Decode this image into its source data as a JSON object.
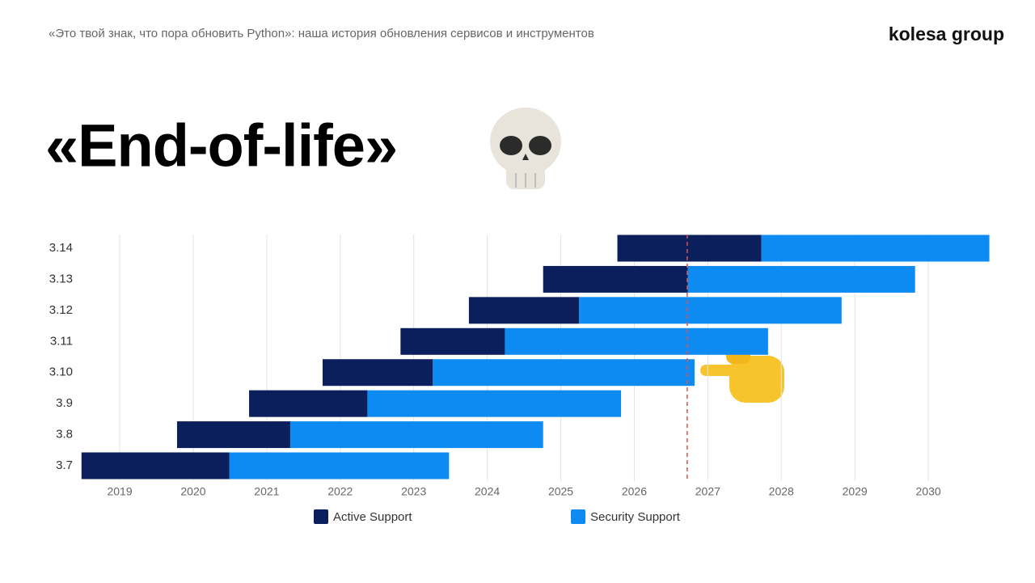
{
  "header": {
    "subtitle": "«Это твой знак, что пора обновить Python»: наша история обновления сервисов и инструментов",
    "brand": "kolesa group",
    "title": "«End-of-life»"
  },
  "chart_data": {
    "type": "floating-bar",
    "categories": [
      "3.7",
      "3.8",
      "3.9",
      "3.10",
      "3.11",
      "3.12",
      "3.13",
      "3.14"
    ],
    "series": [
      {
        "name": "Active Support",
        "color": "#0b1f5c",
        "start": [
          2018.48,
          2019.78,
          2020.76,
          2021.76,
          2022.82,
          2023.75,
          2024.76,
          2025.77
        ],
        "end": [
          2020.49,
          2021.32,
          2022.37,
          2023.26,
          2024.24,
          2025.25,
          2026.73,
          2027.73
        ]
      },
      {
        "name": "Security Support",
        "color": "#0d8bf2",
        "start": [
          2020.49,
          2021.32,
          2022.37,
          2023.26,
          2024.24,
          2025.25,
          2026.73,
          2027.73
        ],
        "end": [
          2023.48,
          2024.76,
          2025.82,
          2026.82,
          2027.82,
          2028.82,
          2029.82,
          2030.83
        ]
      }
    ],
    "xlim": [
      2018.4,
      2030.9
    ],
    "xticks": [
      2019,
      2020,
      2021,
      2022,
      2023,
      2024,
      2025,
      2026,
      2027,
      2028,
      2029,
      2030
    ],
    "grid": true,
    "reference_line": {
      "value": 2026.72,
      "color": "#d9534f"
    }
  }
}
